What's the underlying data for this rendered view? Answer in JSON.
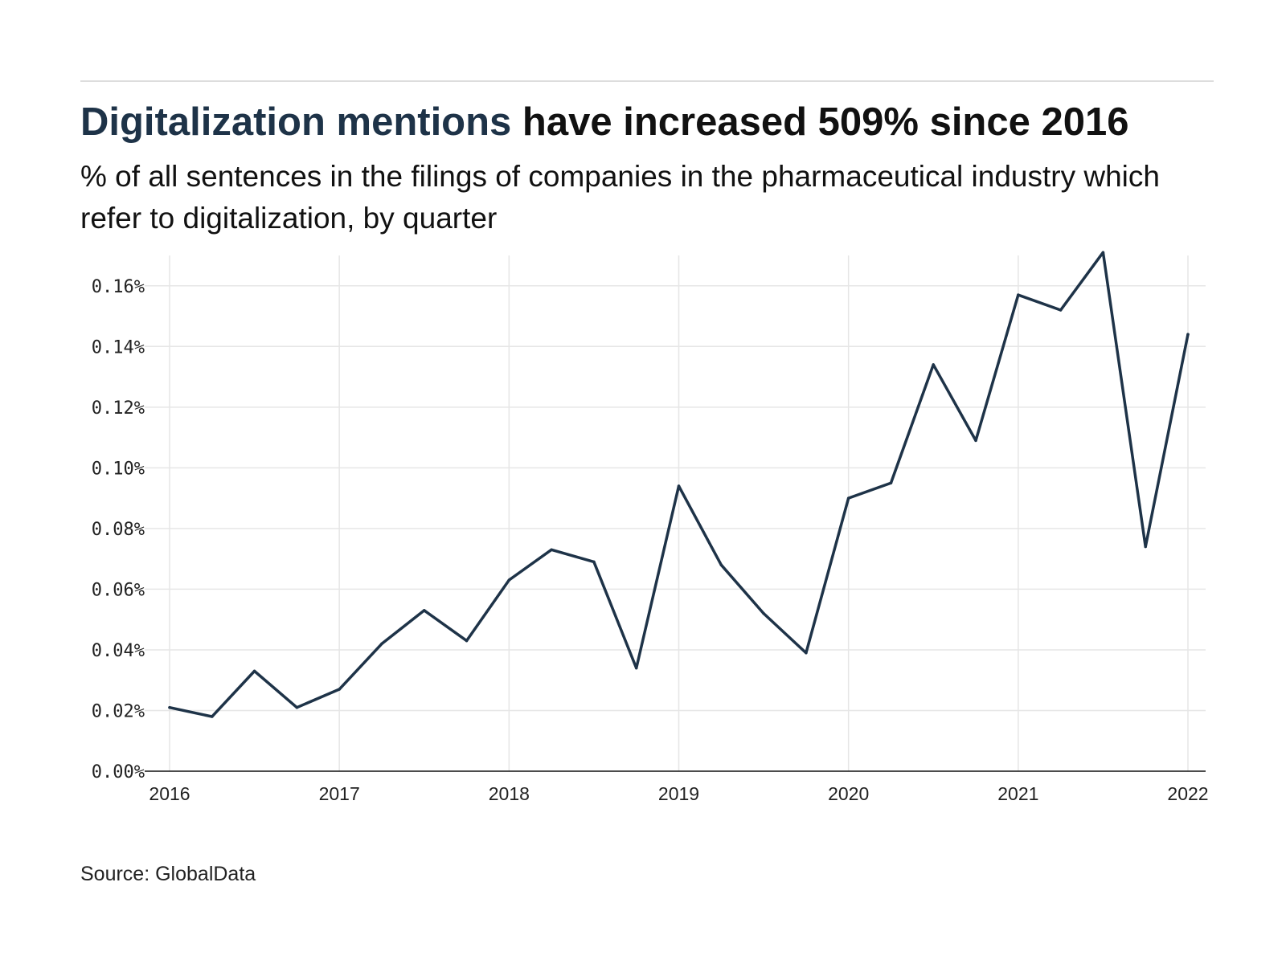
{
  "header": {
    "title_highlight": "Digitalization mentions",
    "title_rest": " have increased 509% since 2016",
    "subtitle": "% of all sentences in the filings of companies in the pharmaceutical industry which refer to digitalization, by quarter"
  },
  "footer": {
    "source": "Source: GlobalData"
  },
  "colors": {
    "line": "#1e3348",
    "accent": "#1e3348",
    "grid": "#e6e6e6",
    "axis": "#111111"
  },
  "chart_data": {
    "type": "line",
    "title": "Digitalization mentions have increased 509% since 2016",
    "subtitle": "% of all sentences in the filings of companies in the pharmaceutical industry which refer to digitalization, by quarter",
    "xlabel": "",
    "ylabel": "",
    "x": [
      "2016-Q1",
      "2016-Q2",
      "2016-Q3",
      "2016-Q4",
      "2017-Q1",
      "2017-Q2",
      "2017-Q3",
      "2017-Q4",
      "2018-Q1",
      "2018-Q2",
      "2018-Q3",
      "2018-Q4",
      "2019-Q1",
      "2019-Q2",
      "2019-Q3",
      "2019-Q4",
      "2020-Q1",
      "2020-Q2",
      "2020-Q3",
      "2020-Q4",
      "2021-Q1",
      "2021-Q2",
      "2021-Q3",
      "2021-Q4",
      "2022-Q1"
    ],
    "series": [
      {
        "values": [
          0.021,
          0.018,
          0.033,
          0.021,
          0.027,
          0.042,
          0.053,
          0.043,
          0.063,
          0.073,
          0.069,
          0.034,
          0.094,
          0.068,
          0.052,
          0.039,
          0.09,
          0.095,
          0.134,
          0.109,
          0.157,
          0.152,
          0.171,
          0.074,
          0.144
        ]
      }
    ],
    "x_ticks": [
      "2016",
      "2017",
      "2018",
      "2019",
      "2020",
      "2021",
      "2022"
    ],
    "y_ticks": [
      "0.00%",
      "0.02%",
      "0.04%",
      "0.06%",
      "0.08%",
      "0.10%",
      "0.12%",
      "0.14%",
      "0.16%"
    ],
    "xlim": [
      "2016-Q1",
      "2022-Q1"
    ],
    "ylim": [
      0,
      0.17
    ],
    "y_unit": "%",
    "grid": true,
    "legend": "none"
  }
}
